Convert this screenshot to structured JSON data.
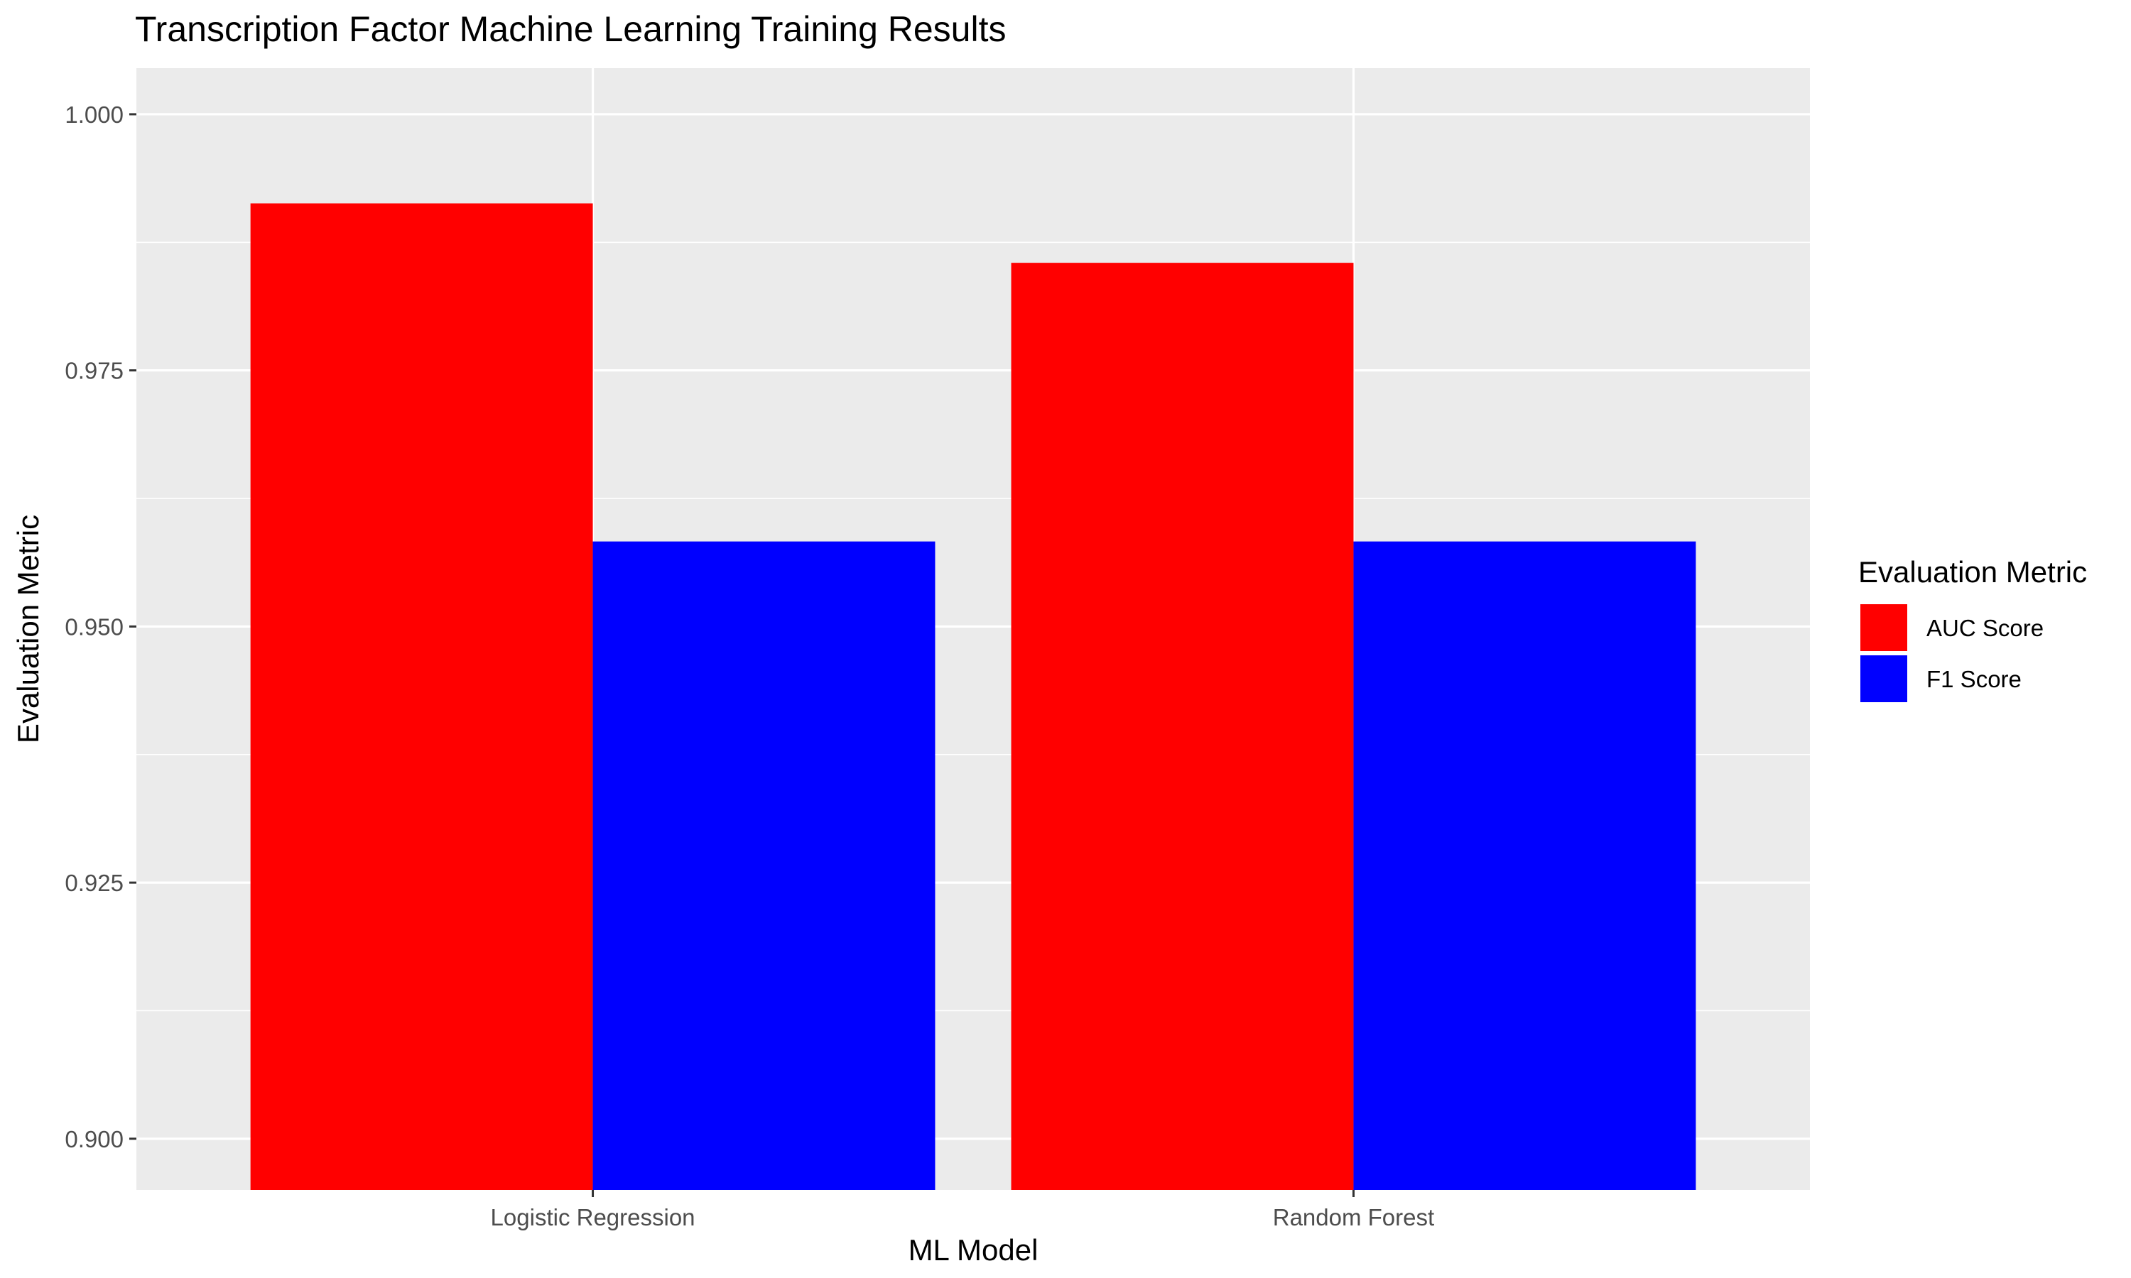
{
  "chart_data": {
    "type": "bar",
    "title": "Transcription Factor Machine Learning Training Results",
    "xlabel": "ML Model",
    "ylabel": "Evaluation Metric",
    "categories": [
      "Logistic Regression",
      "Random Forest"
    ],
    "series": [
      {
        "name": "AUC Score",
        "color": "#ff0000",
        "values": [
          0.9913,
          0.9855
        ]
      },
      {
        "name": "F1 Score",
        "color": "#0000ff",
        "values": [
          0.9583,
          0.9583
        ]
      }
    ],
    "ylim": [
      0.895,
      1.0045
    ],
    "yticks": [
      0.9,
      0.925,
      0.95,
      0.975,
      1.0
    ],
    "ytick_labels": [
      "0.900",
      "0.925",
      "0.950",
      "0.975",
      "1.000"
    ],
    "legend": {
      "title": "Evaluation Metric",
      "position": "right"
    },
    "grid": true
  }
}
